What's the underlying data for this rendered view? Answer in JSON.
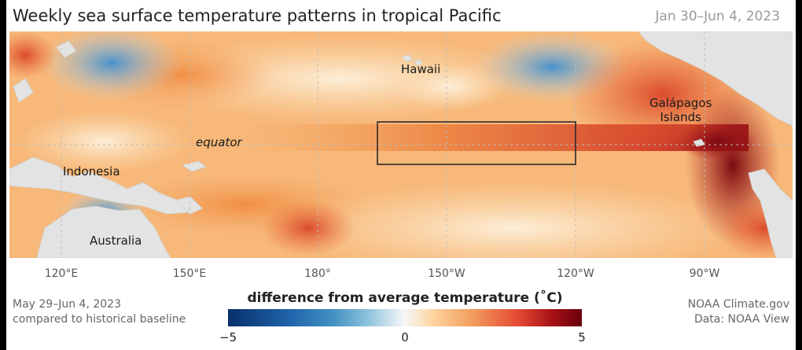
{
  "title": "Weekly sea surface temperature patterns in tropical Pacific",
  "date_range": "Jan 30–Jun 4, 2023",
  "map_labels": {
    "hawaii": "Hawaii",
    "galapagos": "Galápagos\nIslands",
    "equator": "equator",
    "indonesia": "Indonesia",
    "australia": "Australia"
  },
  "longitudes": [
    "120°E",
    "150°E",
    "180°",
    "150°W",
    "120°W",
    "90°W"
  ],
  "footer_left": {
    "line1": "May 29–Jun 4, 2023",
    "line2": "compared to historical baseline"
  },
  "footer_right": {
    "line1": "NOAA Climate.gov",
    "line2": "Data: NOAA View"
  },
  "legend": {
    "title": "difference from average temperature (˚C)",
    "min_label": "−5",
    "mid_label": "0",
    "max_label": "5",
    "colors": [
      "#08306b",
      "#2166ac",
      "#92c5de",
      "#f7f7f7",
      "#f4a261",
      "#e34a33",
      "#67000d"
    ]
  }
}
